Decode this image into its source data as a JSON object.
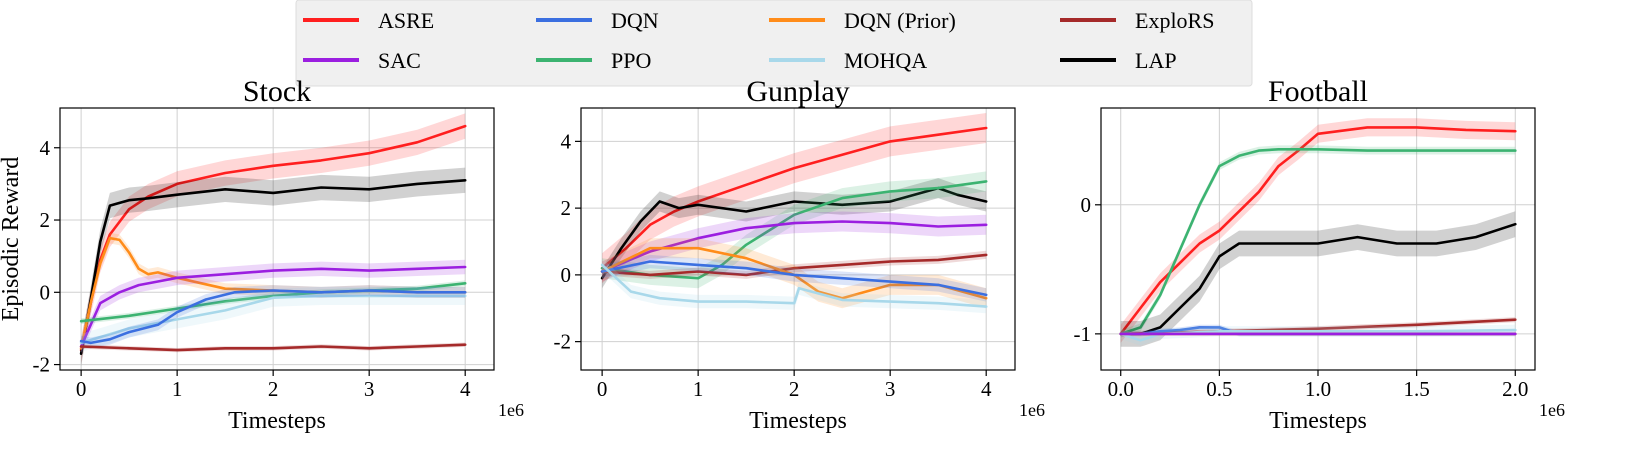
{
  "legend": {
    "location": "top-center",
    "ncol": 4,
    "entries": [
      {
        "label": "ASRE",
        "color": "#ff1f1f"
      },
      {
        "label": "DQN",
        "color": "#3b6fe0"
      },
      {
        "label": "DQN (Prior)",
        "color": "#ff8c1a"
      },
      {
        "label": "ExploRS",
        "color": "#a52a2a"
      },
      {
        "label": "SAC",
        "color": "#9b1fe0"
      },
      {
        "label": "PPO",
        "color": "#3cb371"
      },
      {
        "label": "MOHQA",
        "color": "#a8d8ea"
      },
      {
        "label": "LAP",
        "color": "#000000"
      }
    ]
  },
  "chart_data": [
    {
      "type": "line",
      "title": "Stock",
      "xlabel": "Timesteps",
      "ylabel": "Episodic Reward",
      "x_multiplier": "1e6",
      "xlim": [
        -0.22,
        4.3
      ],
      "ylim": [
        -2.15,
        5.1
      ],
      "xticks": [
        0,
        1,
        2,
        3,
        4
      ],
      "xtick_labels": [
        "0",
        "1",
        "2",
        "3",
        "4"
      ],
      "yticks": [
        -2,
        0,
        2,
        4
      ],
      "ytick_labels": [
        "-2",
        "0",
        "2",
        "4"
      ],
      "grid": true,
      "series": [
        {
          "name": "ASRE",
          "x": [
            0,
            0.1,
            0.2,
            0.3,
            0.5,
            0.7,
            1.0,
            1.5,
            2.0,
            2.5,
            3.0,
            3.5,
            4.0
          ],
          "y": [
            -1.6,
            -0.3,
            0.9,
            1.6,
            2.3,
            2.65,
            3.0,
            3.3,
            3.5,
            3.65,
            3.85,
            4.15,
            4.6
          ],
          "band": 0.35
        },
        {
          "name": "LAP",
          "x": [
            0,
            0.1,
            0.2,
            0.3,
            0.5,
            0.7,
            1.0,
            1.5,
            2.0,
            2.5,
            3.0,
            3.5,
            4.0
          ],
          "y": [
            -1.7,
            -0.2,
            1.4,
            2.4,
            2.55,
            2.6,
            2.7,
            2.85,
            2.75,
            2.9,
            2.85,
            3.0,
            3.1
          ],
          "band": 0.35
        },
        {
          "name": "DQN (Prior)",
          "x": [
            0,
            0.1,
            0.2,
            0.3,
            0.4,
            0.5,
            0.6,
            0.7,
            0.8,
            1.0,
            1.5,
            2.0,
            2.5,
            3.0,
            3.5,
            4.0
          ],
          "y": [
            -1.55,
            -0.3,
            0.8,
            1.5,
            1.45,
            1.1,
            0.65,
            0.5,
            0.55,
            0.4,
            0.1,
            0.05,
            0.0,
            0.05,
            0.0,
            0.0
          ],
          "band": 0.15
        },
        {
          "name": "SAC",
          "x": [
            0,
            0.2,
            0.4,
            0.6,
            0.8,
            1.0,
            1.5,
            2.0,
            2.5,
            3.0,
            3.5,
            4.0
          ],
          "y": [
            -1.5,
            -0.3,
            0.0,
            0.2,
            0.3,
            0.4,
            0.5,
            0.6,
            0.65,
            0.6,
            0.65,
            0.7
          ],
          "band": 0.2
        },
        {
          "name": "PPO",
          "x": [
            0,
            0.5,
            1.0,
            1.5,
            2.0,
            2.5,
            3.0,
            3.5,
            4.0
          ],
          "y": [
            -0.8,
            -0.65,
            -0.45,
            -0.25,
            -0.1,
            0.0,
            0.05,
            0.1,
            0.25
          ],
          "band": 0.08
        },
        {
          "name": "MOHQA",
          "x": [
            0,
            0.5,
            1.0,
            1.5,
            2.0,
            2.5,
            3.0,
            3.5,
            4.0
          ],
          "y": [
            -1.4,
            -1.0,
            -0.75,
            -0.5,
            -0.15,
            -0.1,
            -0.1,
            -0.1,
            -0.1
          ],
          "band": 0.25
        },
        {
          "name": "DQN",
          "x": [
            0,
            0.1,
            0.3,
            0.5,
            0.8,
            1.0,
            1.3,
            1.6,
            2.0,
            2.5,
            3.0,
            3.5,
            4.0
          ],
          "y": [
            -1.35,
            -1.4,
            -1.3,
            -1.1,
            -0.9,
            -0.55,
            -0.2,
            0.0,
            0.05,
            0.0,
            0.05,
            0.0,
            0.0
          ],
          "band": 0.15
        },
        {
          "name": "ExploRS",
          "x": [
            0,
            0.5,
            1.0,
            1.5,
            2.0,
            2.5,
            3.0,
            3.5,
            4.0
          ],
          "y": [
            -1.5,
            -1.55,
            -1.6,
            -1.55,
            -1.55,
            -1.5,
            -1.55,
            -1.5,
            -1.45
          ],
          "band": 0.06
        }
      ]
    },
    {
      "type": "line",
      "title": "Gunplay",
      "xlabel": "Timesteps",
      "ylabel": "",
      "x_multiplier": "1e6",
      "xlim": [
        -0.22,
        4.3
      ],
      "ylim": [
        -2.85,
        5.0
      ],
      "xticks": [
        0,
        1,
        2,
        3,
        4
      ],
      "xtick_labels": [
        "0",
        "1",
        "2",
        "3",
        "4"
      ],
      "yticks": [
        -2,
        0,
        2,
        4
      ],
      "ytick_labels": [
        "-2",
        "0",
        "2",
        "4"
      ],
      "grid": true,
      "series": [
        {
          "name": "ASRE",
          "x": [
            0,
            0.25,
            0.5,
            0.75,
            1.0,
            1.5,
            2.0,
            2.5,
            3.0,
            3.5,
            4.0
          ],
          "y": [
            0.2,
            0.8,
            1.5,
            1.9,
            2.2,
            2.7,
            3.2,
            3.6,
            4.0,
            4.2,
            4.4
          ],
          "band": 0.45
        },
        {
          "name": "LAP",
          "x": [
            0,
            0.2,
            0.4,
            0.6,
            0.8,
            1.0,
            1.5,
            2.0,
            2.5,
            3.0,
            3.5,
            3.7,
            4.0
          ],
          "y": [
            -0.1,
            0.8,
            1.6,
            2.2,
            2.0,
            2.1,
            1.9,
            2.2,
            2.1,
            2.2,
            2.6,
            2.4,
            2.2
          ],
          "band": 0.3
        },
        {
          "name": "PPO",
          "x": [
            0,
            0.5,
            1.0,
            1.25,
            1.5,
            2.0,
            2.5,
            3.0,
            3.5,
            4.0
          ],
          "y": [
            0.2,
            0.0,
            -0.1,
            0.3,
            0.9,
            1.8,
            2.3,
            2.5,
            2.6,
            2.8
          ],
          "band": 0.3
        },
        {
          "name": "SAC",
          "x": [
            0,
            0.5,
            1.0,
            1.5,
            2.0,
            2.5,
            3.0,
            3.5,
            4.0
          ],
          "y": [
            0.1,
            0.7,
            1.1,
            1.4,
            1.55,
            1.6,
            1.55,
            1.45,
            1.5
          ],
          "band": 0.3
        },
        {
          "name": "ExploRS",
          "x": [
            0,
            0.5,
            1.0,
            1.5,
            2.0,
            2.5,
            3.0,
            3.5,
            4.0
          ],
          "y": [
            0.1,
            0.0,
            0.1,
            0.0,
            0.2,
            0.3,
            0.4,
            0.45,
            0.6
          ],
          "band": 0.12
        },
        {
          "name": "DQN (Prior)",
          "x": [
            0,
            0.5,
            1.0,
            1.5,
            2.0,
            2.25,
            2.5,
            3.0,
            3.5,
            4.0
          ],
          "y": [
            0.1,
            0.8,
            0.8,
            0.5,
            0.0,
            -0.5,
            -0.7,
            -0.3,
            -0.3,
            -0.7
          ],
          "band": 0.3
        },
        {
          "name": "DQN",
          "x": [
            0,
            0.5,
            1.0,
            1.5,
            2.0,
            2.5,
            3.0,
            3.5,
            4.0
          ],
          "y": [
            0.1,
            0.4,
            0.3,
            0.2,
            0.0,
            -0.1,
            -0.2,
            -0.3,
            -0.6
          ],
          "band": 0.2
        },
        {
          "name": "MOHQA",
          "x": [
            0,
            0.3,
            0.6,
            1.0,
            1.5,
            2.0,
            2.05,
            2.5,
            3.0,
            3.5,
            4.0
          ],
          "y": [
            0.3,
            -0.5,
            -0.7,
            -0.8,
            -0.8,
            -0.85,
            -0.4,
            -0.75,
            -0.8,
            -0.85,
            -0.95
          ],
          "band": 0.2
        }
      ]
    },
    {
      "type": "line",
      "title": "Football",
      "xlabel": "Timesteps",
      "ylabel": "",
      "x_multiplier": "1e6",
      "xlim": [
        -0.1,
        2.1
      ],
      "ylim": [
        -1.28,
        0.75
      ],
      "xticks": [
        0.0,
        0.5,
        1.0,
        1.5,
        2.0
      ],
      "xtick_labels": [
        "0.0",
        "0.5",
        "1.0",
        "1.5",
        "2.0"
      ],
      "yticks": [
        -1,
        0
      ],
      "ytick_labels": [
        "-1",
        "0"
      ],
      "grid": true,
      "series": [
        {
          "name": "ASRE",
          "x": [
            0,
            0.1,
            0.2,
            0.3,
            0.4,
            0.5,
            0.6,
            0.7,
            0.8,
            0.9,
            1.0,
            1.25,
            1.5,
            1.75,
            2.0
          ],
          "y": [
            -1.0,
            -0.8,
            -0.6,
            -0.45,
            -0.3,
            -0.2,
            -0.05,
            0.1,
            0.3,
            0.42,
            0.55,
            0.6,
            0.6,
            0.58,
            0.57
          ],
          "band": 0.07
        },
        {
          "name": "PPO",
          "x": [
            0,
            0.1,
            0.2,
            0.3,
            0.4,
            0.5,
            0.6,
            0.7,
            0.8,
            1.0,
            1.25,
            1.5,
            1.75,
            2.0
          ],
          "y": [
            -1.0,
            -0.95,
            -0.7,
            -0.35,
            0.0,
            0.3,
            0.38,
            0.42,
            0.43,
            0.43,
            0.42,
            0.42,
            0.42,
            0.42
          ],
          "band": 0.03
        },
        {
          "name": "LAP",
          "x": [
            0,
            0.1,
            0.2,
            0.3,
            0.4,
            0.5,
            0.6,
            0.8,
            1.0,
            1.2,
            1.4,
            1.6,
            1.8,
            2.0
          ],
          "y": [
            -1.0,
            -1.0,
            -0.95,
            -0.8,
            -0.65,
            -0.4,
            -0.3,
            -0.3,
            -0.3,
            -0.25,
            -0.3,
            -0.3,
            -0.25,
            -0.15
          ],
          "band": 0.1
        },
        {
          "name": "ExploRS",
          "x": [
            0,
            0.5,
            1.0,
            1.5,
            2.0
          ],
          "y": [
            -1.0,
            -0.98,
            -0.96,
            -0.93,
            -0.89
          ],
          "band": 0.02
        },
        {
          "name": "DQN",
          "x": [
            0,
            0.1,
            0.2,
            0.3,
            0.4,
            0.5,
            0.6,
            1.0,
            1.5,
            2.0
          ],
          "y": [
            -1.0,
            -1.0,
            -0.98,
            -0.97,
            -0.95,
            -0.95,
            -1.0,
            -1.0,
            -1.0,
            -1.0
          ],
          "band": 0.02
        },
        {
          "name": "MOHQA",
          "x": [
            0,
            0.1,
            0.2,
            0.5,
            1.0,
            1.5,
            2.0
          ],
          "y": [
            -1.0,
            -1.05,
            -1.0,
            -0.98,
            -0.98,
            -0.98,
            -0.97
          ],
          "band": 0.04
        },
        {
          "name": "DQN (Prior)",
          "x": [
            0,
            0.5,
            1.0,
            1.5,
            2.0
          ],
          "y": [
            -1.0,
            -1.0,
            -1.0,
            -1.0,
            -1.0
          ],
          "band": 0.01
        },
        {
          "name": "SAC",
          "x": [
            0,
            0.5,
            1.0,
            1.5,
            2.0
          ],
          "y": [
            -1.0,
            -1.0,
            -1.0,
            -1.0,
            -1.0
          ],
          "band": 0.01
        }
      ]
    }
  ]
}
